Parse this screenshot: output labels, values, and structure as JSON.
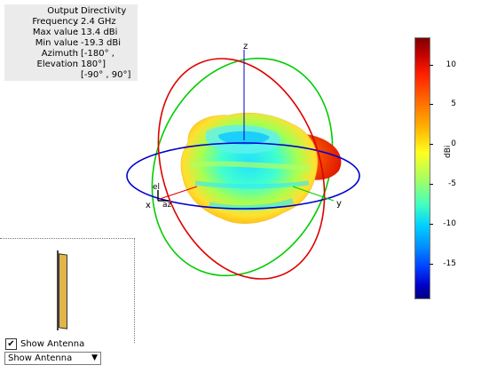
{
  "info": {
    "rows": [
      {
        "key": "Output",
        "value": "Directivity"
      },
      {
        "key": "Frequency",
        "value": "2.4 GHz"
      },
      {
        "key": "Max value",
        "value": "13.4 dBi"
      },
      {
        "key": "Min value",
        "value": "-19.3 dBi"
      },
      {
        "key": "Azimuth",
        "value": "[-180° ,"
      },
      {
        "key": "Elevation",
        "value": "180°]"
      }
    ],
    "extra": "[-90° , 90°]"
  },
  "axes": {
    "z": "z",
    "x": "x",
    "y": "y",
    "el": "el",
    "az": "az"
  },
  "colorbar": {
    "unit": "dBi",
    "ticks": [
      "10",
      "5",
      "0",
      "-5",
      "-10",
      "-15"
    ],
    "max_color": "#7f0000",
    "min_color": "#00007f"
  },
  "controls": {
    "show_antenna_label": "Show Antenna",
    "show_antenna_checked": "✔",
    "dropdown_value": "Show Antenna"
  },
  "colors": {
    "ring_azimuth": "#0000cc",
    "ring_xz": "#dd0000",
    "ring_yz": "#00cc00",
    "antenna": "#e2b54a"
  }
}
